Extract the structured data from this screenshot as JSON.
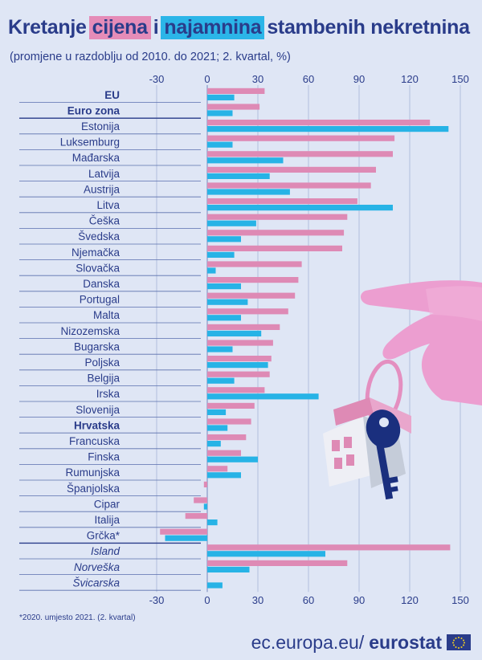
{
  "title": {
    "part1": "Kretanje",
    "part2": "cijena",
    "part3": "i",
    "part4": "najamnina",
    "part5": "stambenih nekretnina"
  },
  "subtitle": "(promjene u razdoblju od 2010. do 2021; 2. kvartal, %)",
  "footnote": "*2020. umjesto 2021. (2. kvartal)",
  "brand": {
    "url": "ec.europa.eu/",
    "name": "eurostat"
  },
  "colors": {
    "prices": "#de8ab5",
    "rents": "#27b3e6",
    "text": "#2a3c8a",
    "background": "#dfe6f5"
  },
  "chart_data": {
    "type": "bar",
    "orientation": "horizontal",
    "categories": [
      "EU",
      "Euro zona",
      "Estonija",
      "Luksemburg",
      "Mađarska",
      "Latvija",
      "Austrija",
      "Litva",
      "Češka",
      "Švedska",
      "Njemačka",
      "Slovačka",
      "Danska",
      "Portugal",
      "Malta",
      "Nizozemska",
      "Bugarska",
      "Poljska",
      "Belgija",
      "Irska",
      "Slovenija",
      "Hrvatska",
      "Francuska",
      "Finska",
      "Rumunjska",
      "Španjolska",
      "Cipar",
      "Italija",
      "Grčka*",
      "Island",
      "Norveška",
      "Švicarska"
    ],
    "category_styles": [
      "bold",
      "bold",
      "normal",
      "normal",
      "normal",
      "normal",
      "normal",
      "normal",
      "normal",
      "normal",
      "normal",
      "normal",
      "normal",
      "normal",
      "normal",
      "normal",
      "normal",
      "normal",
      "normal",
      "normal",
      "normal",
      "bold",
      "normal",
      "normal",
      "normal",
      "normal",
      "normal",
      "normal",
      "normal",
      "italic",
      "italic",
      "italic"
    ],
    "series": [
      {
        "key": "prices",
        "values": [
          34,
          31,
          132,
          111,
          110,
          100,
          97,
          89,
          83,
          81,
          80,
          56,
          54,
          52,
          48,
          43,
          39,
          38,
          37,
          34,
          28,
          26,
          23,
          20,
          12,
          -2,
          -8,
          -13,
          -28,
          144,
          83,
          null
        ]
      },
      {
        "key": "rents",
        "values": [
          16,
          15,
          143,
          15,
          45,
          37,
          49,
          110,
          29,
          20,
          16,
          5,
          20,
          24,
          20,
          32,
          15,
          36,
          16,
          66,
          11,
          12,
          8,
          30,
          20,
          null,
          -2,
          6,
          -25,
          70,
          25,
          9
        ]
      }
    ],
    "x_ticks": [
      -30,
      0,
      30,
      60,
      90,
      120,
      150
    ],
    "xlim": [
      -30,
      150
    ],
    "grid": true,
    "legend": "none"
  }
}
